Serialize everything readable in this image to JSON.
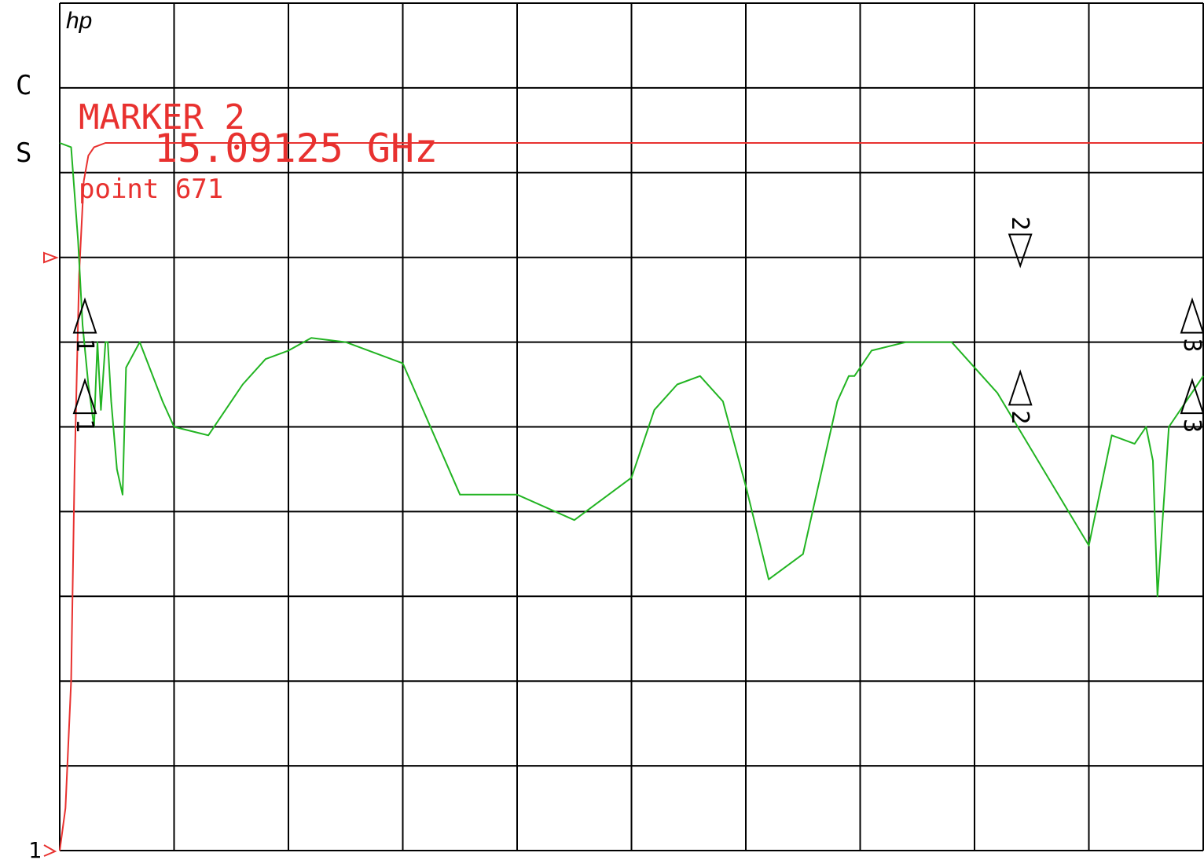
{
  "instrument": {
    "logo": "hp",
    "channel_label": "C",
    "scale_label": "S",
    "ref_label": "1"
  },
  "marker_readout": {
    "title": "MARKER 2",
    "frequency": "15.09125 GHz",
    "point": "point  671"
  },
  "colors": {
    "grid": "#000000",
    "trace_red": "#e8312f",
    "trace_green": "#22b422",
    "background": "#ffffff"
  },
  "chart_data": {
    "type": "line",
    "grid": true,
    "divisions": {
      "x": 10,
      "y": 10
    },
    "xlim": [
      0,
      10
    ],
    "ylim": [
      0,
      10
    ],
    "series": [
      {
        "color": "#e8312f",
        "x": [
          0,
          0.05,
          0.1,
          0.13,
          0.17,
          0.21,
          0.25,
          0.3,
          0.4,
          0.5,
          0.6,
          1.0,
          2.0,
          3.0,
          4.0,
          5.0,
          6.0,
          7.0,
          8.0,
          9.0,
          10.0
        ],
        "y": [
          0,
          0.5,
          2.0,
          4.5,
          6.8,
          7.9,
          8.2,
          8.3,
          8.35,
          8.35,
          8.35,
          8.35,
          8.35,
          8.35,
          8.35,
          8.35,
          8.35,
          8.35,
          8.35,
          8.35,
          8.35
        ]
      },
      {
        "color": "#22b422",
        "x": [
          0,
          0.1,
          0.16,
          0.2,
          0.25,
          0.3,
          0.33,
          0.36,
          0.4,
          0.42,
          0.45,
          0.5,
          0.55,
          0.58,
          0.62,
          0.7,
          0.9,
          1.0,
          1.3,
          1.6,
          1.8,
          2.0,
          2.2,
          2.5,
          3.0,
          3.5,
          4.0,
          4.5,
          5.0,
          5.2,
          5.4,
          5.6,
          5.8,
          6.0,
          6.2,
          6.5,
          6.8,
          6.9,
          6.95,
          7.0,
          7.1,
          7.4,
          7.8,
          8.2,
          8.6,
          9.0,
          9.2,
          9.4,
          9.5,
          9.56,
          9.6,
          9.7,
          9.9,
          10.0
        ],
        "y": [
          8.35,
          8.3,
          7.2,
          6.2,
          5.5,
          5.0,
          6.0,
          5.2,
          6.0,
          6.0,
          5.3,
          4.5,
          4.2,
          5.7,
          5.8,
          6.0,
          5.3,
          5.0,
          4.9,
          5.5,
          5.8,
          5.9,
          6.05,
          6.0,
          5.75,
          4.2,
          4.2,
          3.9,
          4.4,
          5.2,
          5.5,
          5.6,
          5.3,
          4.3,
          3.2,
          3.5,
          5.3,
          5.6,
          5.6,
          5.7,
          5.9,
          6.0,
          6.0,
          5.4,
          4.5,
          3.6,
          4.9,
          4.8,
          5.0,
          4.6,
          3.0,
          5.0,
          5.4,
          5.6
        ]
      }
    ],
    "markers": [
      {
        "label": "1",
        "trace": "red",
        "x": 0.22,
        "y": 6.5,
        "direction": "up"
      },
      {
        "label": "1",
        "trace": "green",
        "x": 0.22,
        "y": 5.55,
        "direction": "up"
      },
      {
        "label": "2",
        "trace": "red",
        "x": 8.4,
        "y": 6.9,
        "direction": "down"
      },
      {
        "label": "2",
        "trace": "green",
        "x": 8.4,
        "y": 5.65,
        "direction": "up"
      },
      {
        "label": "3",
        "trace": "red",
        "x": 10.0,
        "y": 6.5,
        "direction": "up"
      },
      {
        "label": "3",
        "trace": "green",
        "x": 10.0,
        "y": 5.55,
        "direction": "up"
      }
    ]
  }
}
